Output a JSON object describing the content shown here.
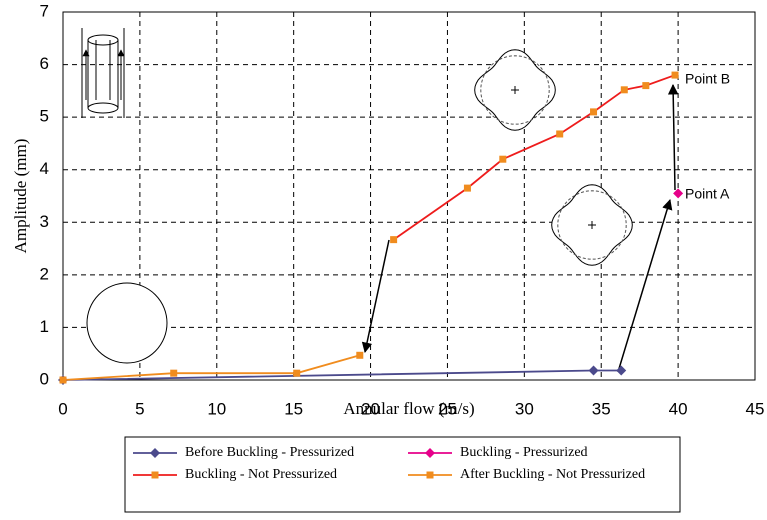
{
  "chart_data": {
    "type": "line",
    "xlabel": "Annular flow (m/s)",
    "ylabel": "Amplitude (mm)",
    "xlim": [
      0,
      45
    ],
    "xticks": [
      0,
      5,
      10,
      15,
      20,
      25,
      30,
      35,
      40,
      45
    ],
    "ylim": [
      0,
      7
    ],
    "yticks": [
      0,
      1,
      2,
      3,
      4,
      5,
      6,
      7
    ],
    "grid": true,
    "legend": "bottom",
    "series": [
      {
        "name": "Before Buckling - Pressurized",
        "color": "#4b4a8c",
        "marker": "diamond",
        "x": [
          0,
          34.5,
          36.3
        ],
        "values": [
          0,
          0.18,
          0.18
        ]
      },
      {
        "name": "Buckling - Pressurized",
        "color": "#e6008a",
        "marker": "diamond",
        "x": [
          40
        ],
        "values": [
          3.55
        ]
      },
      {
        "name": "Buckling - Not Pressurized",
        "color": "#ee1c1c",
        "marker": "square",
        "marker_color": "#f08c1e",
        "x": [
          21.5,
          26.3,
          28.6,
          32.3,
          34.5,
          36.5,
          37.9,
          39.8
        ],
        "values": [
          2.67,
          3.65,
          4.2,
          4.68,
          5.1,
          5.52,
          5.6,
          5.8
        ]
      },
      {
        "name": "After Buckling - Not Pressurized",
        "color": "#f08c1e",
        "marker": "square",
        "x": [
          0,
          7.2,
          15.2,
          19.3
        ],
        "values": [
          0,
          0.13,
          0.13,
          0.47
        ]
      }
    ],
    "annotations": [
      "Point A",
      "Point B"
    ]
  }
}
